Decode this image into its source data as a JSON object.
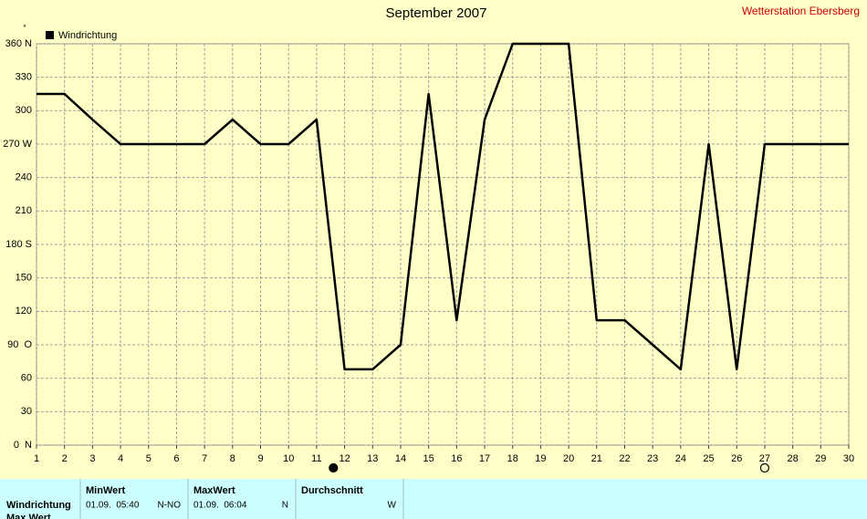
{
  "chart_data": {
    "type": "line",
    "title": "September 2007",
    "station": "Wetterstation Ebersberg",
    "y_unit": "°",
    "x": [
      1,
      2,
      3,
      4,
      5,
      6,
      7,
      8,
      9,
      10,
      11,
      12,
      13,
      14,
      15,
      16,
      17,
      18,
      19,
      20,
      21,
      22,
      23,
      24,
      25,
      26,
      27,
      28,
      29,
      30
    ],
    "series": [
      {
        "name": "Windrichtung",
        "color": "#000000",
        "values": [
          315,
          315,
          292,
          270,
          270,
          270,
          270,
          292,
          270,
          270,
          292,
          68,
          68,
          90,
          315,
          112,
          292,
          360,
          360,
          360,
          112,
          112,
          90,
          68,
          270,
          68,
          270,
          270,
          270,
          270
        ]
      }
    ],
    "xlim": [
      1,
      30
    ],
    "xticks": [
      1,
      2,
      3,
      4,
      5,
      6,
      7,
      8,
      9,
      10,
      11,
      12,
      13,
      14,
      15,
      16,
      17,
      18,
      19,
      20,
      21,
      22,
      23,
      24,
      25,
      26,
      27,
      28,
      29,
      30
    ],
    "ylim": [
      0,
      360
    ],
    "yticks": [
      {
        "value": 0,
        "label": "0  N"
      },
      30,
      60,
      {
        "value": 90,
        "label": "90  O"
      },
      120,
      150,
      {
        "value": 180,
        "label": "180 S"
      },
      210,
      240,
      {
        "value": 270,
        "label": "270 W"
      },
      300,
      330,
      {
        "value": 360,
        "label": "360 N"
      }
    ],
    "grid": true,
    "legend": "top-left",
    "moon_markers": [
      {
        "x": 11.6,
        "filled": true
      },
      {
        "x": 27,
        "filled": false
      }
    ]
  },
  "table": {
    "columns": [
      "MinWert",
      "MaxWert",
      "Durchschnitt"
    ],
    "rows": [
      {
        "label": "Windrichtung",
        "cells": [
          {
            "time": "01.09.  05:40",
            "dir": "N-NO"
          },
          {
            "time": "01.09.  06:04",
            "dir": "N"
          },
          {
            "dir": "W"
          }
        ]
      },
      {
        "label": "Max Wert"
      }
    ]
  }
}
